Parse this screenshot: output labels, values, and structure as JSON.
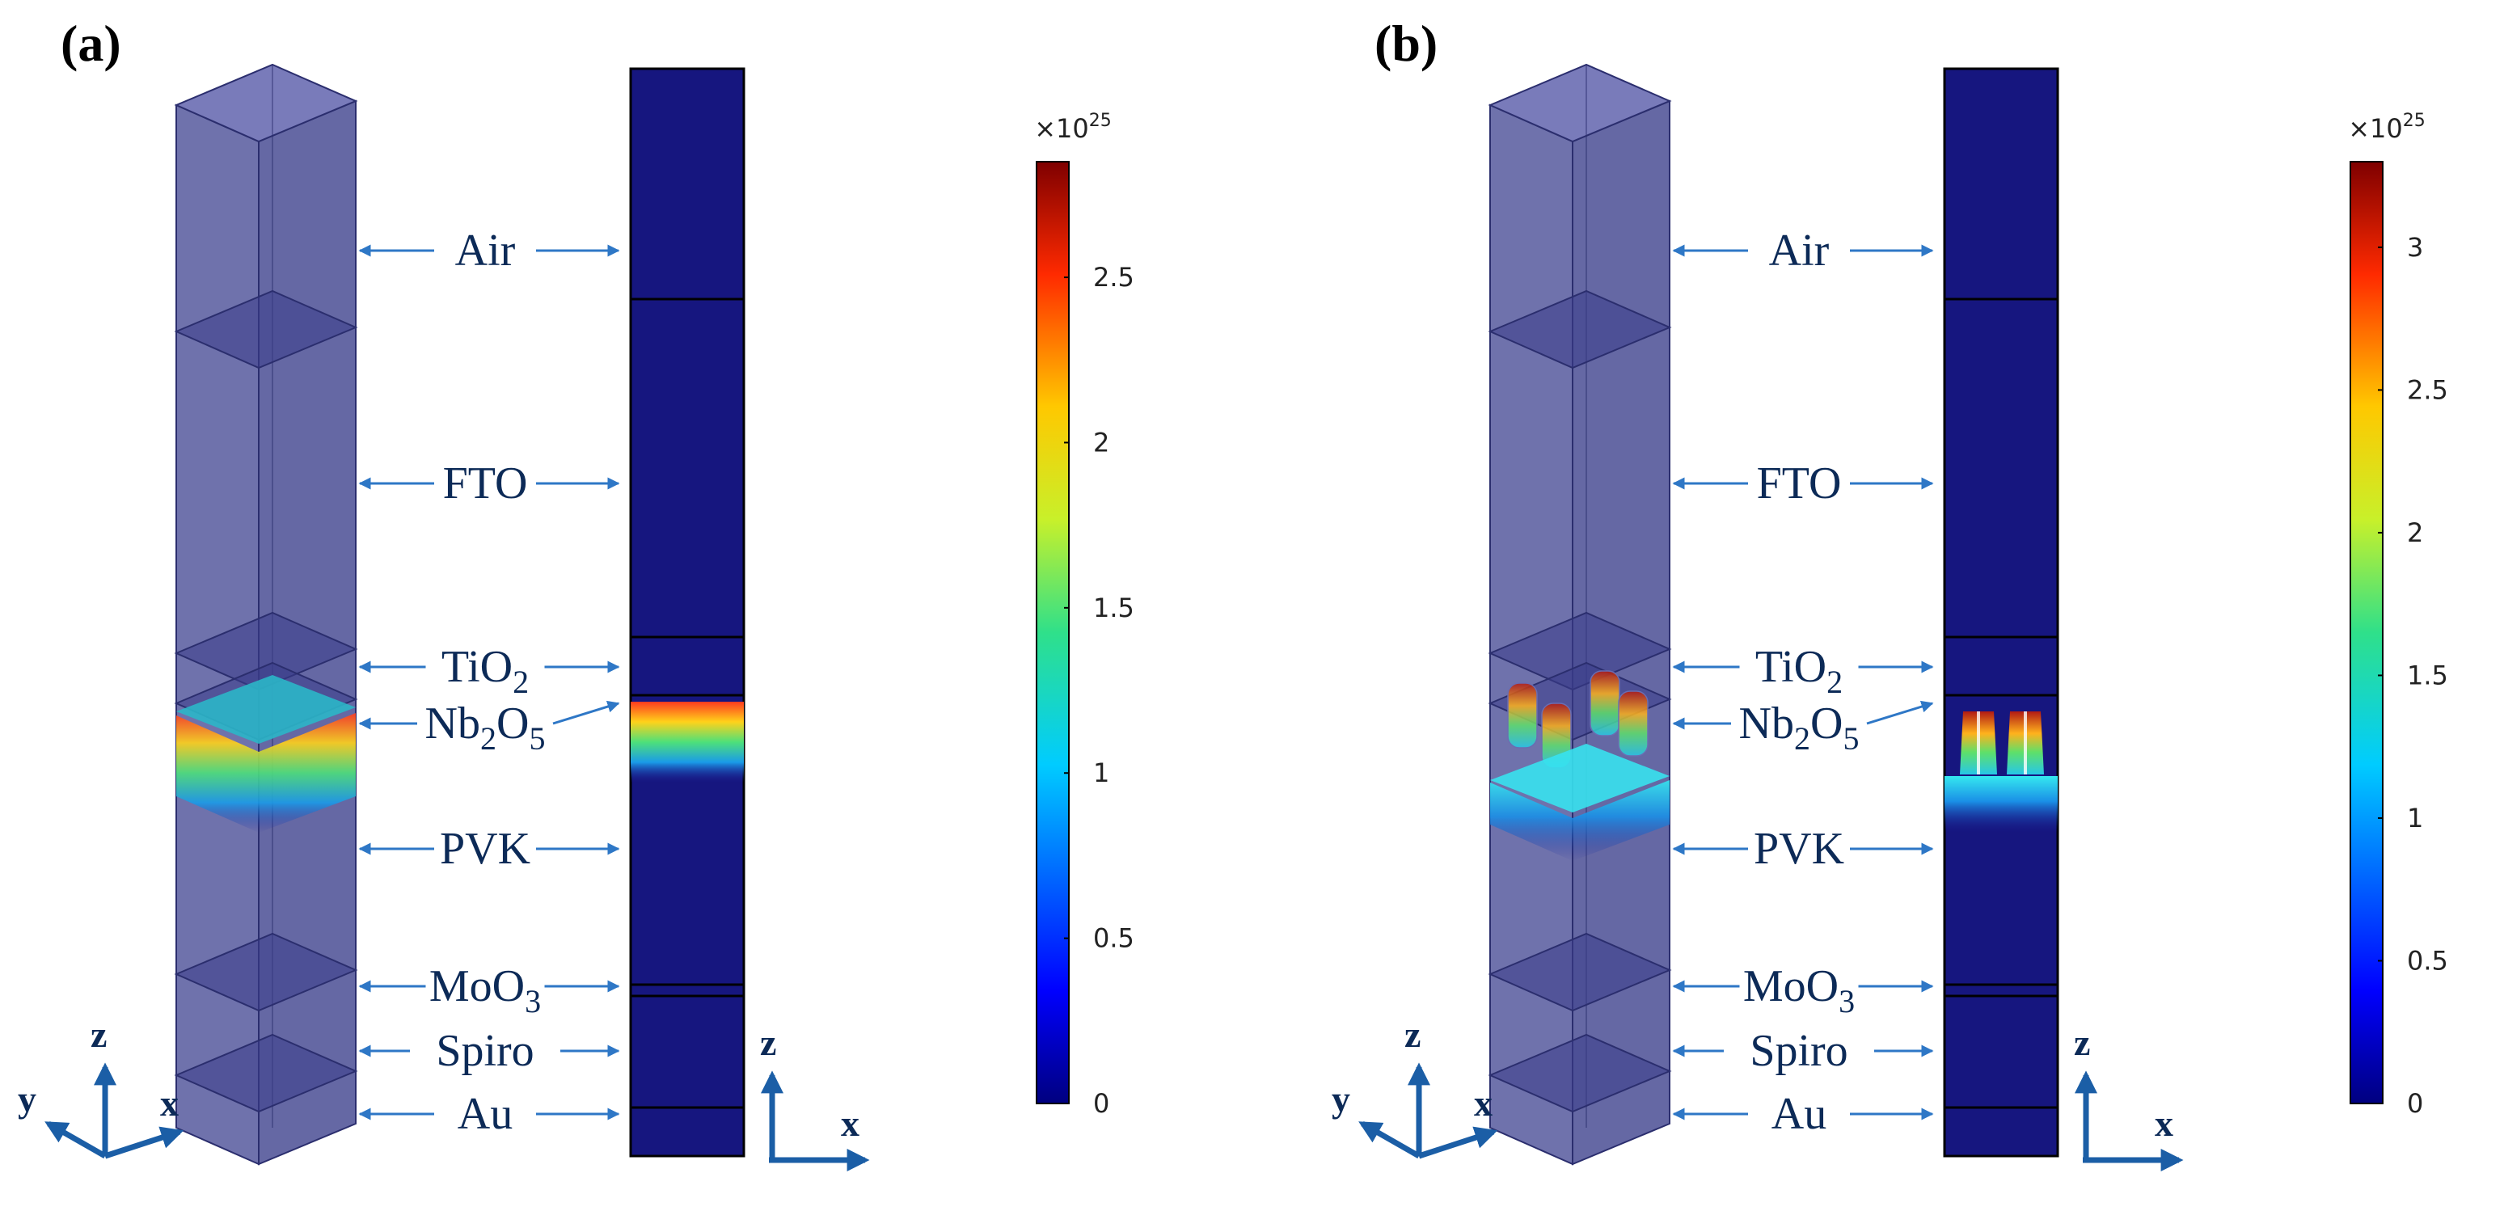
{
  "panels": [
    {
      "id": "a",
      "label": "(a)",
      "layers": [
        {
          "name": "Air",
          "main": "Air",
          "sub": ""
        },
        {
          "name": "FTO",
          "main": "FTO",
          "sub": ""
        },
        {
          "name": "TiO2",
          "main": "TiO",
          "sub": "2"
        },
        {
          "name": "Nb2O5",
          "main": "Nb",
          "sub": "2",
          "main2": "O",
          "sub2": "5"
        },
        {
          "name": "PVK",
          "main": "PVK",
          "sub": ""
        },
        {
          "name": "MoO3",
          "main": "MoO",
          "sub": "3"
        },
        {
          "name": "Spiro",
          "main": "Spiro",
          "sub": ""
        },
        {
          "name": "Au",
          "main": "Au",
          "sub": ""
        }
      ],
      "axes3d": {
        "z": "z",
        "y": "y",
        "x": "x"
      },
      "axes2d": {
        "z": "z",
        "x": "x"
      },
      "colorbar": {
        "multiplier": "×10",
        "exponent": "25",
        "min": 0,
        "max": 2.85,
        "ticks": [
          "0",
          "0.5",
          "1",
          "1.5",
          "2",
          "2.5"
        ],
        "tick_values": [
          0,
          0.5,
          1,
          1.5,
          2,
          2.5
        ]
      }
    },
    {
      "id": "b",
      "label": "(b)",
      "layers": [
        {
          "name": "Air",
          "main": "Air",
          "sub": ""
        },
        {
          "name": "FTO",
          "main": "FTO",
          "sub": ""
        },
        {
          "name": "TiO2",
          "main": "TiO",
          "sub": "2"
        },
        {
          "name": "Nb2O5",
          "main": "Nb",
          "sub": "2",
          "main2": "O",
          "sub2": "5"
        },
        {
          "name": "PVK",
          "main": "PVK",
          "sub": ""
        },
        {
          "name": "MoO3",
          "main": "MoO",
          "sub": "3"
        },
        {
          "name": "Spiro",
          "main": "Spiro",
          "sub": ""
        },
        {
          "name": "Au",
          "main": "Au",
          "sub": ""
        }
      ],
      "axes3d": {
        "z": "z",
        "y": "y",
        "x": "x"
      },
      "axes2d": {
        "z": "z",
        "x": "x"
      },
      "colorbar": {
        "multiplier": "×10",
        "exponent": "25",
        "min": 0,
        "max": 3.3,
        "ticks": [
          "0",
          "0.5",
          "1",
          "1.5",
          "2",
          "2.5",
          "3"
        ],
        "tick_values": [
          0,
          0.5,
          1,
          1.5,
          2,
          2.5,
          3
        ]
      }
    }
  ],
  "colors": {
    "arrow": "#2e77c6",
    "label_text": "#0c2a57",
    "axis_arrow": "#1b5ea6",
    "box_fill": "#56599e",
    "box_edge": "#2b2e6e",
    "slice_bg": "#16167f"
  }
}
